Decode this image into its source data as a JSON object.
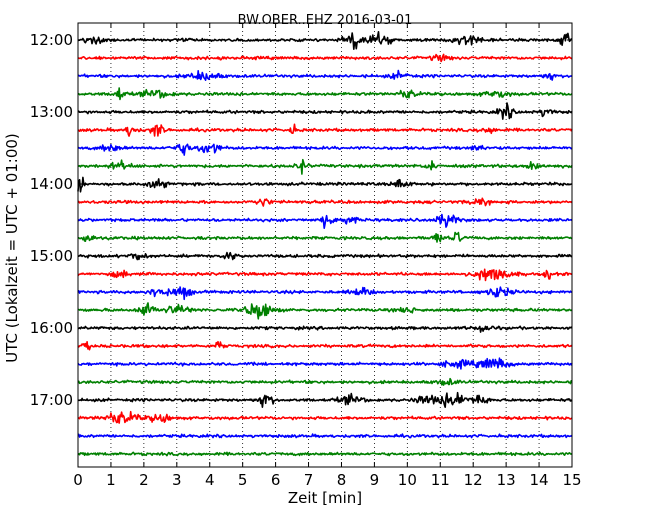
{
  "chart_data": {
    "type": "line",
    "title": "BW.OBER..EHZ 2016-03-01",
    "xlabel": "Zeit  [min]",
    "ylabel": "UTC (Lokalzeit = UTC + 01:00)",
    "xlim": [
      0,
      15
    ],
    "x_ticks": [
      "0",
      "1",
      "2",
      "3",
      "4",
      "5",
      "6",
      "7",
      "8",
      "9",
      "10",
      "11",
      "12",
      "13",
      "14",
      "15"
    ],
    "y_ticks": [
      "12:00",
      "13:00",
      "14:00",
      "15:00",
      "16:00",
      "17:00"
    ],
    "grid_x": "dotted",
    "trace_colors": [
      "#000000",
      "#ff0000",
      "#0000ff",
      "#008000"
    ],
    "traces": [
      {
        "start": "12:00",
        "color": "#000000",
        "bursts": [
          [
            0.5,
            0.35,
            0.3
          ],
          [
            8.4,
            0.5,
            0.5
          ],
          [
            9.2,
            0.4,
            0.5
          ],
          [
            11.9,
            0.6,
            0.4
          ],
          [
            14.8,
            0.2,
            0.5
          ]
        ]
      },
      {
        "start": "12:15",
        "color": "#ff0000",
        "bursts": [
          [
            11.0,
            0.4,
            0.2
          ]
        ]
      },
      {
        "start": "12:30",
        "color": "#0000ff",
        "bursts": [
          [
            3.8,
            0.6,
            0.35
          ],
          [
            9.8,
            0.4,
            0.25
          ],
          [
            14.3,
            0.2,
            0.3
          ]
        ]
      },
      {
        "start": "12:45",
        "color": "#008000",
        "bursts": [
          [
            1.25,
            0.2,
            0.5
          ],
          [
            2.4,
            0.6,
            0.3
          ],
          [
            10.0,
            0.4,
            0.3
          ],
          [
            12.7,
            0.5,
            0.25
          ]
        ]
      },
      {
        "start": "13:00",
        "color": "#000000",
        "bursts": [
          [
            13.0,
            0.3,
            0.5
          ],
          [
            14.2,
            0.3,
            0.3
          ]
        ]
      },
      {
        "start": "13:15",
        "color": "#ff0000",
        "bursts": [
          [
            1.6,
            0.2,
            0.5
          ],
          [
            2.4,
            0.3,
            0.45
          ],
          [
            6.5,
            0.15,
            0.4
          ],
          [
            12.5,
            0.4,
            0.2
          ]
        ]
      },
      {
        "start": "13:30",
        "color": "#0000ff",
        "bursts": [
          [
            1.0,
            0.4,
            0.3
          ],
          [
            3.2,
            0.4,
            0.4
          ],
          [
            4.0,
            0.4,
            0.5
          ],
          [
            12.2,
            0.3,
            0.2
          ]
        ]
      },
      {
        "start": "13:45",
        "color": "#008000",
        "bursts": [
          [
            1.3,
            0.4,
            0.3
          ],
          [
            6.8,
            0.2,
            0.5
          ],
          [
            10.7,
            0.15,
            0.6
          ],
          [
            13.8,
            0.3,
            0.4
          ]
        ]
      },
      {
        "start": "14:00",
        "color": "#000000",
        "bursts": [
          [
            0.05,
            0.15,
            0.7
          ],
          [
            2.4,
            0.4,
            0.3
          ],
          [
            9.8,
            0.3,
            0.4
          ]
        ]
      },
      {
        "start": "14:15",
        "color": "#ff0000",
        "bursts": [
          [
            5.6,
            0.3,
            0.3
          ],
          [
            12.2,
            0.4,
            0.25
          ]
        ]
      },
      {
        "start": "14:30",
        "color": "#0000ff",
        "bursts": [
          [
            7.5,
            0.1,
            0.9
          ],
          [
            8.0,
            0.5,
            0.35
          ],
          [
            11.2,
            0.4,
            0.5
          ]
        ]
      },
      {
        "start": "14:45",
        "color": "#008000",
        "bursts": [
          [
            0.3,
            0.2,
            0.4
          ],
          [
            10.9,
            0.2,
            0.5
          ],
          [
            11.5,
            0.15,
            0.55
          ]
        ]
      },
      {
        "start": "15:00",
        "color": "#000000",
        "bursts": [
          [
            1.8,
            0.3,
            0.3
          ],
          [
            4.6,
            0.3,
            0.25
          ]
        ]
      },
      {
        "start": "15:15",
        "color": "#ff0000",
        "bursts": [
          [
            1.3,
            0.3,
            0.3
          ],
          [
            12.6,
            0.7,
            0.55
          ],
          [
            14.3,
            0.15,
            0.45
          ]
        ]
      },
      {
        "start": "15:30",
        "color": "#0000ff",
        "bursts": [
          [
            2.5,
            0.5,
            0.35
          ],
          [
            3.2,
            0.3,
            0.5
          ],
          [
            8.6,
            0.4,
            0.3
          ],
          [
            12.8,
            0.5,
            0.4
          ]
        ]
      },
      {
        "start": "15:45",
        "color": "#008000",
        "bursts": [
          [
            2.1,
            0.3,
            0.55
          ],
          [
            3.0,
            0.5,
            0.35
          ],
          [
            5.5,
            0.5,
            0.7
          ],
          [
            10.0,
            0.3,
            0.25
          ]
        ]
      },
      {
        "start": "16:00",
        "color": "#000000",
        "bursts": [
          [
            12.3,
            0.4,
            0.25
          ]
        ]
      },
      {
        "start": "16:15",
        "color": "#ff0000",
        "bursts": [
          [
            0.3,
            0.15,
            0.4
          ],
          [
            4.3,
            0.15,
            0.4
          ]
        ]
      },
      {
        "start": "16:30",
        "color": "#0000ff",
        "bursts": [
          [
            11.5,
            0.6,
            0.25
          ],
          [
            12.6,
            0.6,
            0.45
          ]
        ]
      },
      {
        "start": "16:45",
        "color": "#008000",
        "bursts": [
          [
            11.2,
            0.4,
            0.2
          ]
        ]
      },
      {
        "start": "17:00",
        "color": "#000000",
        "bursts": [
          [
            5.7,
            0.3,
            0.5
          ],
          [
            8.3,
            0.5,
            0.3
          ],
          [
            10.6,
            0.5,
            0.3
          ],
          [
            11.4,
            0.5,
            0.6
          ],
          [
            12.2,
            0.4,
            0.3
          ]
        ]
      },
      {
        "start": "17:15",
        "color": "#ff0000",
        "bursts": [
          [
            1.3,
            0.7,
            0.45
          ],
          [
            2.5,
            0.4,
            0.35
          ]
        ]
      },
      {
        "start": "17:30",
        "color": "#0000ff",
        "bursts": []
      },
      {
        "start": "17:45",
        "color": "#008000",
        "bursts": []
      }
    ]
  }
}
